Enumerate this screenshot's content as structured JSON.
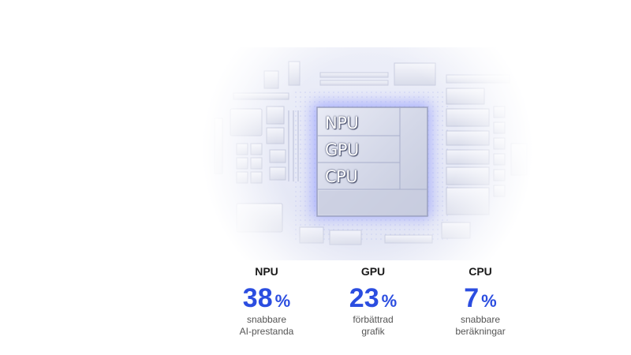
{
  "chip": {
    "labels": [
      "NPU",
      "GPU",
      "CPU"
    ]
  },
  "stats": [
    {
      "name": "NPU",
      "value": "38",
      "unit": "%",
      "desc_line1": "snabbare",
      "desc_line2": "AI-prestanda"
    },
    {
      "name": "GPU",
      "value": "23",
      "unit": "%",
      "desc_line1": "förbättrad",
      "desc_line2": "grafik"
    },
    {
      "name": "CPU",
      "value": "7",
      "unit": "%",
      "desc_line1": "snabbare",
      "desc_line2": "beräkningar"
    }
  ],
  "colors": {
    "accent": "#2b4de0",
    "chip_glow": "#8c95ff"
  },
  "icons": [
    "chip-circuit-illustration"
  ]
}
